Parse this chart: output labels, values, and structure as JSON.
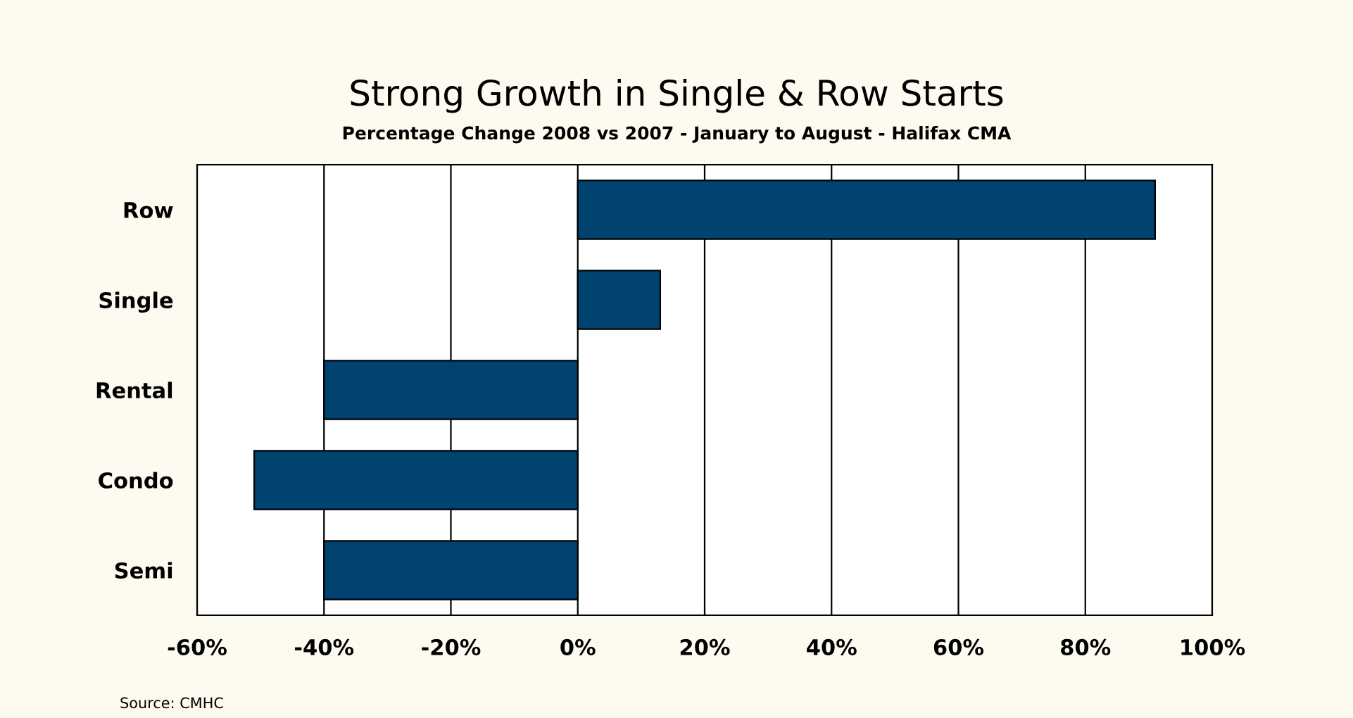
{
  "chart_data": {
    "type": "bar",
    "orientation": "horizontal",
    "title": "Strong Growth in Single & Row Starts",
    "subtitle": "Percentage Change 2008 vs 2007 - January to August - Halifax CMA",
    "categories": [
      "Row",
      "Single",
      "Rental",
      "Condo",
      "Semi"
    ],
    "values": [
      91,
      13,
      -40,
      -51,
      -40
    ],
    "color": "#004370",
    "xlim": [
      -60,
      100
    ],
    "xticks": [
      {
        "value": -60,
        "label": "-60%"
      },
      {
        "value": -40,
        "label": "-40%"
      },
      {
        "value": -20,
        "label": "-20%"
      },
      {
        "value": 0,
        "label": "0%"
      },
      {
        "value": 20,
        "label": "20%"
      },
      {
        "value": 40,
        "label": "40%"
      },
      {
        "value": 60,
        "label": "60%"
      },
      {
        "value": 80,
        "label": "80%"
      },
      {
        "value": 100,
        "label": "100%"
      }
    ],
    "grid": "x",
    "legend": false,
    "annotations": [
      "Source: CMHC"
    ]
  }
}
